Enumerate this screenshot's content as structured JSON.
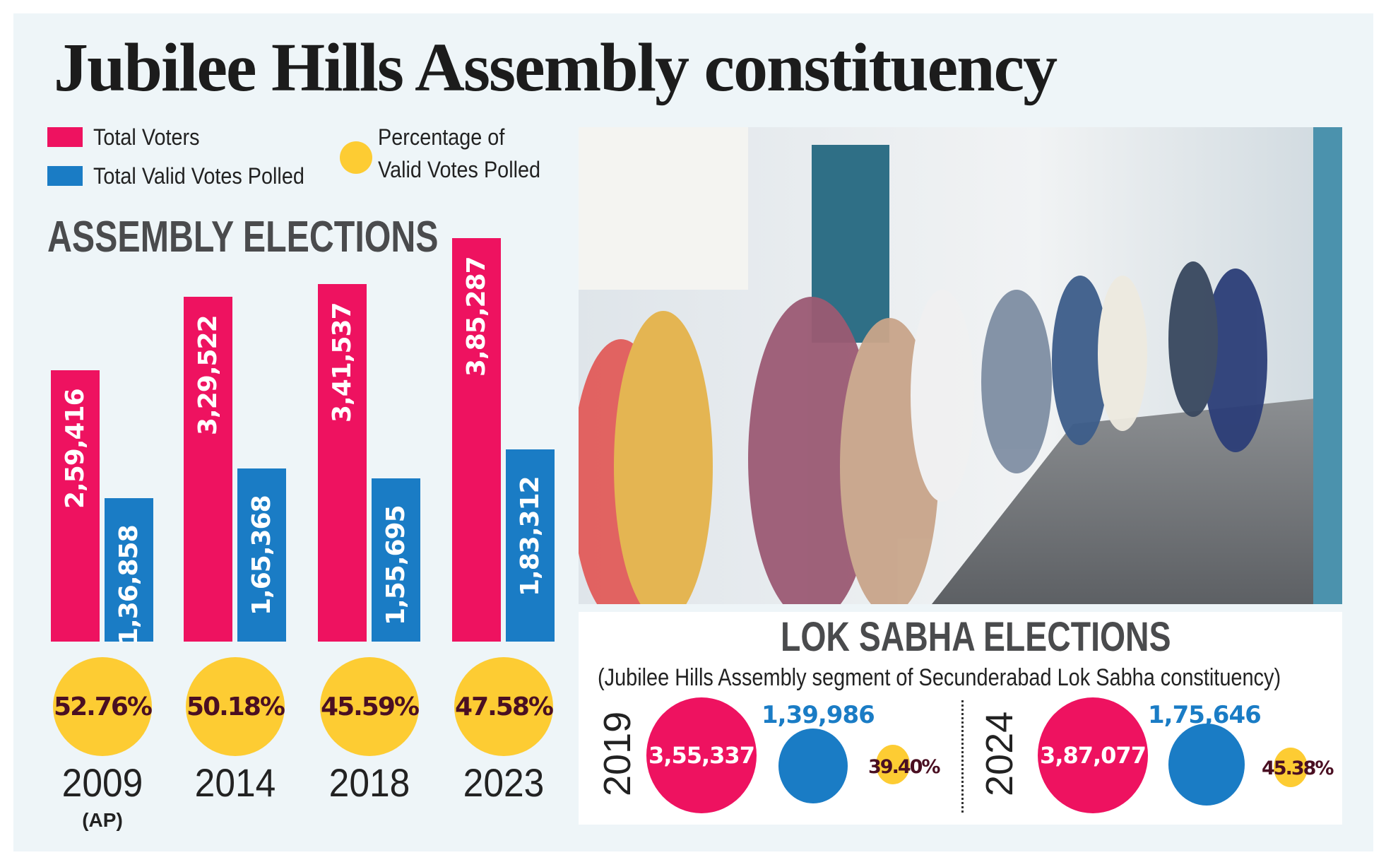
{
  "title": "Jubilee Hills Assembly constituency",
  "legend": {
    "total_voters": "Total Voters",
    "valid_votes": "Total Valid Votes Polled",
    "percentage_line1": "Percentage of",
    "percentage_line2": "Valid Votes Polled"
  },
  "colors": {
    "total_voters": "#EE1260",
    "valid_votes": "#1A7CC5",
    "percentage": "#FDCC33",
    "background": "#EEF5F8"
  },
  "chart_data": [
    {
      "type": "bar",
      "title": "ASSEMBLY ELECTIONS",
      "categories": [
        "2009",
        "2014",
        "2018",
        "2023"
      ],
      "category_notes": [
        "(AP)",
        "",
        "",
        ""
      ],
      "series": [
        {
          "name": "Total Voters",
          "values": [
            259416,
            329522,
            341537,
            385287
          ],
          "labels": [
            "2,59,416",
            "3,29,522",
            "3,41,537",
            "3,85,287"
          ]
        },
        {
          "name": "Total Valid Votes Polled",
          "values": [
            136858,
            165368,
            155695,
            183312
          ],
          "labels": [
            "1,36,858",
            "1,65,368",
            "1,55,695",
            "1,83,312"
          ]
        },
        {
          "name": "Percentage of Valid Votes Polled",
          "values": [
            52.76,
            50.18,
            45.59,
            47.58
          ],
          "labels": [
            "52.76%",
            "50.18%",
            "45.59%",
            "47.58%"
          ]
        }
      ],
      "grid": false,
      "legend": "top-left"
    },
    {
      "type": "bubble",
      "title": "LOK SABHA ELECTIONS",
      "subtitle": "(Jubilee Hills Assembly segment of Secunderabad Lok Sabha constituency)",
      "categories": [
        "2019",
        "2024"
      ],
      "series": [
        {
          "name": "Total Voters",
          "values": [
            355337,
            387077
          ],
          "labels": [
            "3,55,337",
            "3,87,077"
          ]
        },
        {
          "name": "Total Valid Votes Polled",
          "values": [
            139986,
            175646
          ],
          "labels": [
            "1,39,986",
            "1,75,646"
          ]
        },
        {
          "name": "Percentage of Valid Votes Polled",
          "values": [
            39.4,
            45.38
          ],
          "labels": [
            "39.40%",
            "45.38%"
          ]
        }
      ]
    }
  ]
}
